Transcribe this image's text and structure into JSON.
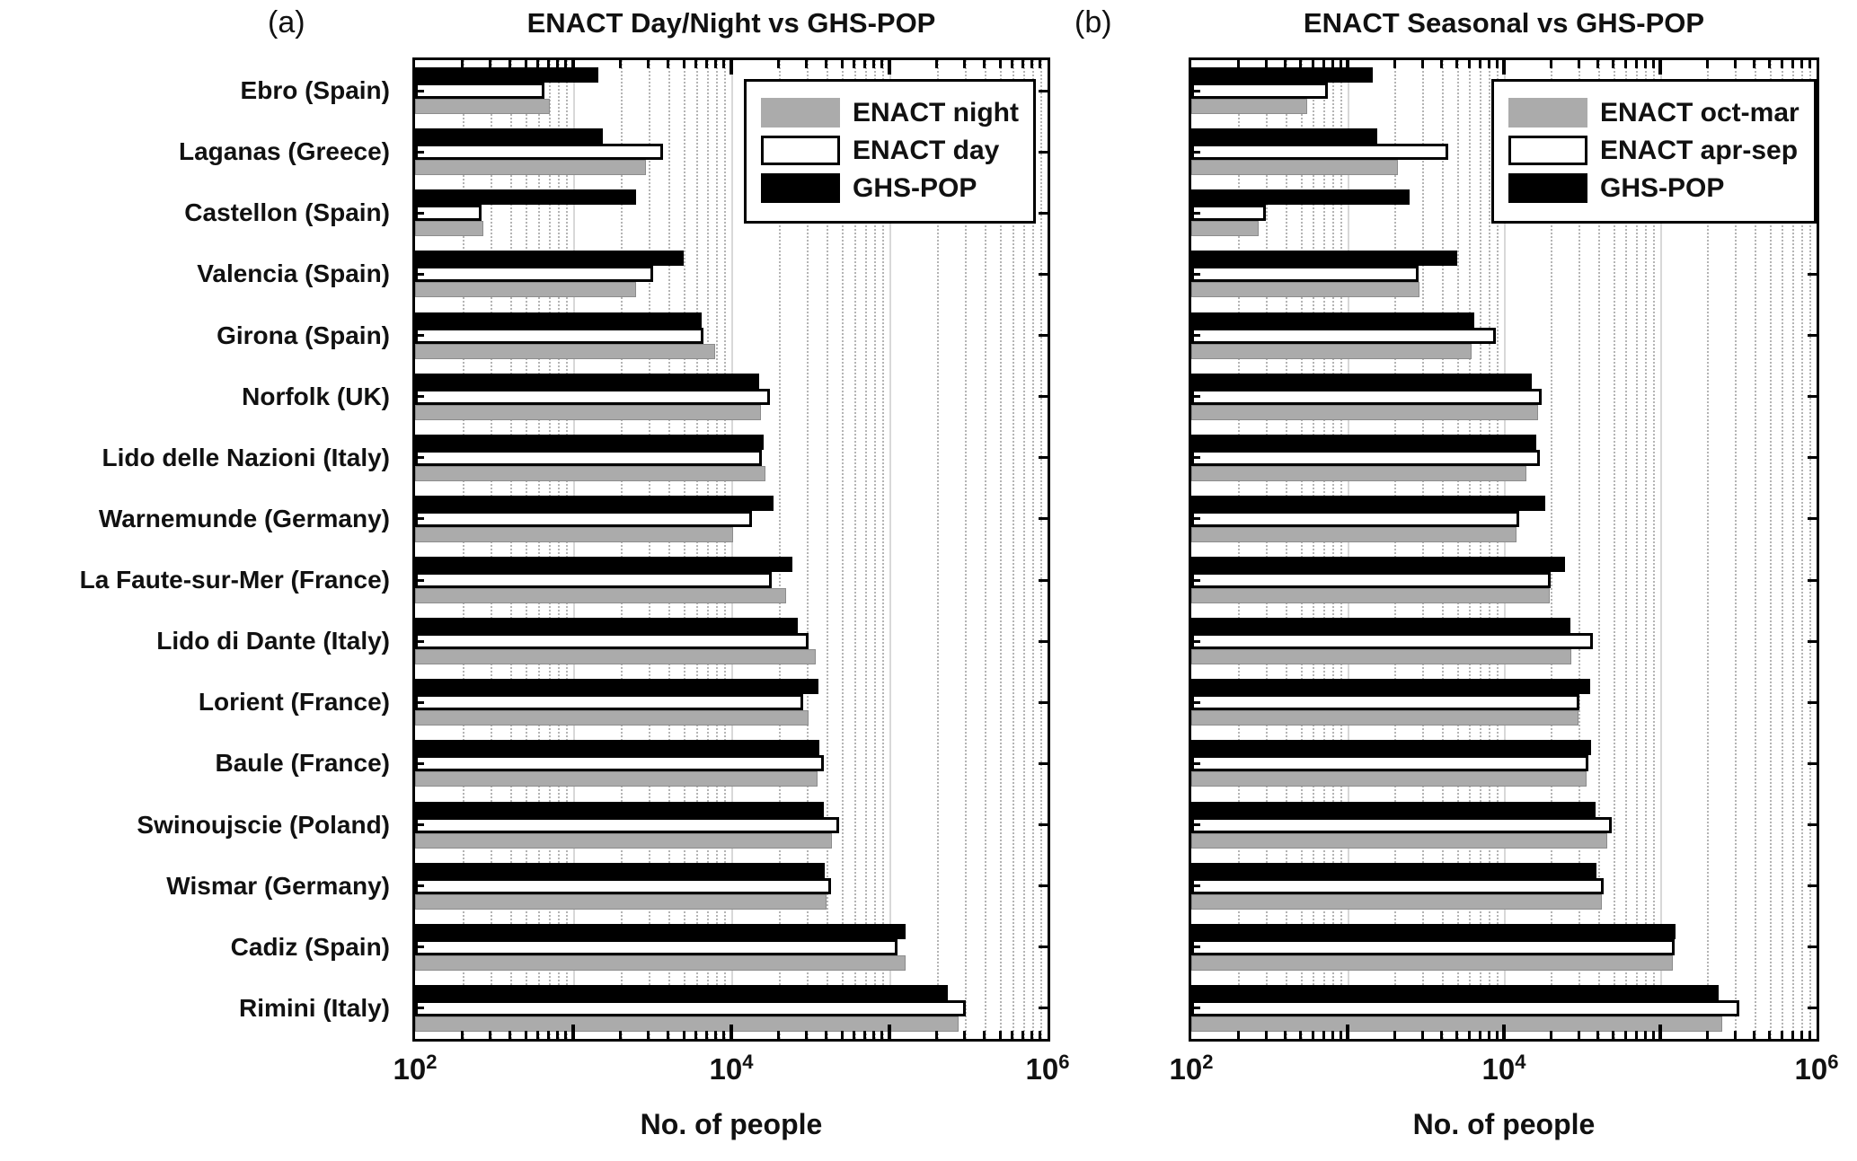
{
  "panel_tags": {
    "a": "(a)",
    "b": "(b)"
  },
  "chart_data": [
    {
      "type": "bar",
      "orientation": "horizontal",
      "title": "ENACT Day/Night vs GHS-POP",
      "xlabel": "No. of people",
      "xscale": "log",
      "xlim": [
        100,
        1000000
      ],
      "grid": true,
      "legend_position": "upper-right",
      "xticks": [
        {
          "value": 100,
          "base": "10",
          "exp": "2"
        },
        {
          "value": 10000,
          "base": "10",
          "exp": "4"
        },
        {
          "value": 1000000,
          "base": "10",
          "exp": "6"
        }
      ],
      "categories": [
        "Ebro (Spain)",
        "Laganas (Greece)",
        "Castellon (Spain)",
        "Valencia (Spain)",
        "Girona (Spain)",
        "Norfolk (UK)",
        "Lido delle Nazioni (Italy)",
        "Warnemunde (Germany)",
        "La Faute-sur-Mer (France)",
        "Lido di Dante (Italy)",
        "Lorient (France)",
        "Baule (France)",
        "Swinoujscie (Poland)",
        "Wismar (Germany)",
        "Cadiz (Spain)",
        "Rimini (Italy)"
      ],
      "series": [
        {
          "name": "ENACT night",
          "color": "#ababab",
          "border": "#8c8c8c",
          "values": [
            710,
            2900,
            270,
            2500,
            7900,
            15500,
            16500,
            10300,
            22300,
            34000,
            31000,
            35000,
            43500,
            40000,
            126000,
            275000
          ]
        },
        {
          "name": "ENACT day",
          "color": "#ffffff",
          "border": "#000000",
          "values": [
            660,
            3700,
            265,
            3200,
            6700,
            17500,
            15700,
            13500,
            18000,
            31000,
            28500,
            38500,
            48000,
            43000,
            112000,
            305000
          ]
        },
        {
          "name": "GHS-POP",
          "color": "#000000",
          "border": "#000000",
          "values": [
            1450,
            1550,
            2500,
            5000,
            6500,
            15000,
            16000,
            18500,
            24500,
            26500,
            35500,
            36000,
            38500,
            39000,
            126000,
            235000
          ]
        }
      ]
    },
    {
      "type": "bar",
      "orientation": "horizontal",
      "title": "ENACT Seasonal vs GHS-POP",
      "xlabel": "No. of people",
      "xscale": "log",
      "xlim": [
        100,
        1000000
      ],
      "grid": true,
      "legend_position": "upper-right",
      "xticks": [
        {
          "value": 100,
          "base": "10",
          "exp": "2"
        },
        {
          "value": 10000,
          "base": "10",
          "exp": "4"
        },
        {
          "value": 1000000,
          "base": "10",
          "exp": "6"
        }
      ],
      "categories": [
        "Ebro (Spain)",
        "Laganas (Greece)",
        "Castellon (Spain)",
        "Valencia (Spain)",
        "Girona (Spain)",
        "Norfolk (UK)",
        "Lido delle Nazioni (Italy)",
        "Warnemunde (Germany)",
        "La Faute-sur-Mer (France)",
        "Lido di Dante (Italy)",
        "Lorient (France)",
        "Baule (France)",
        "Swinoujscie (Poland)",
        "Wismar (Germany)",
        "Cadiz (Spain)",
        "Rimini (Italy)"
      ],
      "series": [
        {
          "name": "ENACT oct-mar",
          "color": "#ababab",
          "border": "#8c8c8c",
          "values": [
            550,
            2100,
            270,
            2900,
            6200,
            16500,
            14000,
            12000,
            19700,
            27000,
            30000,
            34000,
            46000,
            42500,
            120000,
            250000
          ]
        },
        {
          "name": "ENACT apr-sep",
          "color": "#ffffff",
          "border": "#000000",
          "values": [
            750,
            4400,
            300,
            2850,
            8900,
            17500,
            17000,
            12500,
            20000,
            37000,
            30500,
            34500,
            49000,
            43500,
            123000,
            320000
          ]
        },
        {
          "name": "GHS-POP",
          "color": "#000000",
          "border": "#000000",
          "values": [
            1450,
            1550,
            2500,
            5000,
            6500,
            15000,
            16000,
            18500,
            24500,
            26500,
            35500,
            36000,
            38500,
            39000,
            126000,
            235000
          ]
        }
      ]
    }
  ]
}
